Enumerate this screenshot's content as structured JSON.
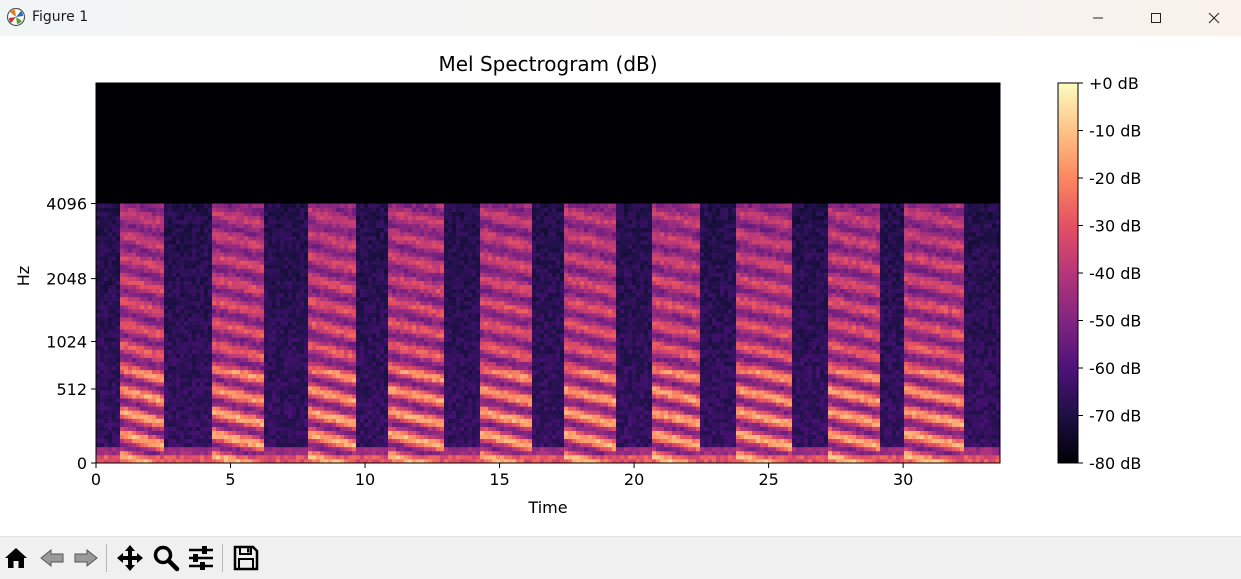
{
  "window": {
    "title": "Figure 1"
  },
  "chart_data": {
    "type": "heatmap",
    "title": "Mel Spectrogram (dB)",
    "xlabel": "Time",
    "ylabel": "Hz",
    "xlim": [
      0,
      33.6
    ],
    "x_ticks": [
      0,
      5,
      10,
      15,
      20,
      25,
      30
    ],
    "y_scale": "mel",
    "y_ticks": [
      0,
      512,
      1024,
      2048,
      4096
    ],
    "y_max_hz": 11025,
    "speech_cutoff_hz": 4096,
    "colormap": "magma",
    "colorbar": {
      "range_db": [
        -80,
        0
      ],
      "ticks": [
        0,
        -10,
        -20,
        -30,
        -40,
        -50,
        -60,
        -70,
        -80
      ],
      "tick_labels": [
        "+0 dB",
        "-10 dB",
        "-20 dB",
        "-30 dB",
        "-40 dB",
        "-50 dB",
        "-60 dB",
        "-70 dB",
        "-80 dB"
      ]
    },
    "speech_segments": [
      [
        0.9,
        2.6
      ],
      [
        4.3,
        6.3
      ],
      [
        7.9,
        9.7
      ],
      [
        10.9,
        12.9
      ],
      [
        14.3,
        16.2
      ],
      [
        17.4,
        19.3
      ],
      [
        20.6,
        22.5
      ],
      [
        23.8,
        25.8
      ],
      [
        27.2,
        29.1
      ],
      [
        30.1,
        32.2
      ]
    ]
  },
  "toolbar": {
    "icons": [
      "home-icon",
      "back-icon",
      "forward-icon",
      "pan-icon",
      "zoom-icon",
      "configure-subplots-icon",
      "save-icon"
    ]
  }
}
